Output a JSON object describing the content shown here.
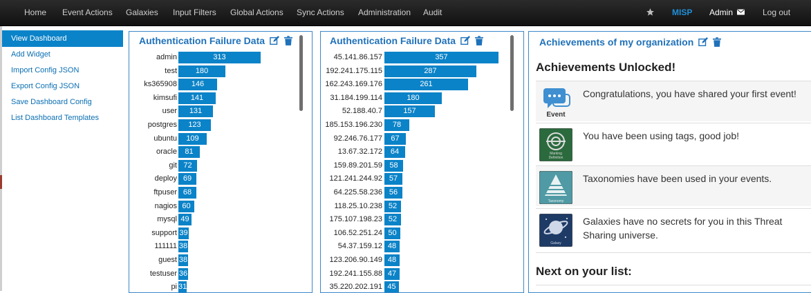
{
  "nav": {
    "items": [
      "Home",
      "Event Actions",
      "Galaxies",
      "Input Filters",
      "Global Actions",
      "Sync Actions",
      "Administration",
      "Audit"
    ],
    "brand": "MISP",
    "user": "Admin",
    "logout": "Log out"
  },
  "sidebar": {
    "items": [
      {
        "label": "View Dashboard",
        "active": true
      },
      {
        "label": "Add Widget"
      },
      {
        "label": "Import Config JSON"
      },
      {
        "label": "Export Config JSON"
      },
      {
        "label": "Save Dashboard Config"
      },
      {
        "label": "List Dashboard Templates"
      }
    ]
  },
  "widgets": {
    "users": {
      "title": "Authentication Failure Data",
      "icons": [
        "edit-icon",
        "trash-icon"
      ]
    },
    "ips": {
      "title": "Authentication Failure Data",
      "icons": [
        "edit-icon",
        "trash-icon"
      ]
    },
    "achievements": {
      "title": "Achievements of my organization",
      "heading": "Achievements Unlocked!",
      "items": [
        {
          "text": "Congratulations, you have shared your first event!",
          "icon": "event-badge-icon",
          "icon_caption": "Event"
        },
        {
          "text": "You have been using tags, good job!",
          "icon": "marking-definition-badge-icon",
          "icon_caption": "Marking Definition"
        },
        {
          "text": "Taxonomies have been used in your events.",
          "icon": "taxonomy-badge-icon",
          "icon_caption": "Taxonomy"
        },
        {
          "text": "Galaxies have no secrets for you in this Threat Sharing universe.",
          "icon": "galaxy-badge-icon",
          "icon_caption": "Galaxy"
        }
      ],
      "next_heading": "Next on your list:"
    }
  },
  "chart_data": [
    {
      "type": "bar",
      "title": "Authentication Failure Data",
      "orientation": "horizontal",
      "categories": [
        "admin",
        "test",
        "ks365908",
        "kimsufi",
        "user",
        "postgres",
        "ubuntu",
        "oracle",
        "git",
        "deploy",
        "ftpuser",
        "nagios",
        "mysql",
        "support",
        "111111",
        "guest",
        "testuser",
        "pi"
      ],
      "values": [
        313,
        180,
        146,
        141,
        131,
        123,
        109,
        81,
        72,
        69,
        68,
        60,
        49,
        39,
        38,
        38,
        36,
        31
      ],
      "color": "#0b83c8"
    },
    {
      "type": "bar",
      "title": "Authentication Failure Data",
      "orientation": "horizontal",
      "categories": [
        "45.141.86.157",
        "192.241.175.115",
        "162.243.169.176",
        "31.184.199.114",
        "52.188.40.7",
        "185.153.196.230",
        "92.246.76.177",
        "13.67.32.172",
        "159.89.201.59",
        "121.241.244.92",
        "64.225.58.236",
        "118.25.10.238",
        "175.107.198.23",
        "106.52.251.24",
        "54.37.159.12",
        "123.206.90.149",
        "192.241.155.88",
        "35.220.202.191"
      ],
      "values": [
        357,
        287,
        261,
        180,
        157,
        78,
        67,
        64,
        58,
        57,
        56,
        52,
        52,
        50,
        48,
        48,
        47,
        45
      ],
      "color": "#0b83c8"
    }
  ],
  "colors": {
    "nav_bg": "#1a1a1a",
    "brand": "#1e8fd8",
    "accent": "#0b83c8",
    "panel_border": "#3a87c9",
    "title": "#1f71ba"
  }
}
